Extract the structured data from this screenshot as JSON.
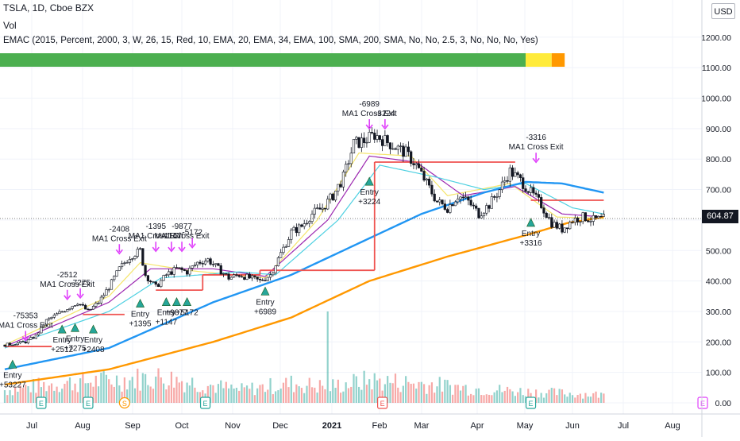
{
  "header": {
    "symbol_line": "TSLA, 1D, Cboe BZX",
    "volume_label": "Vol",
    "study_line": "EMAC (2015, Percent, 2000, 3, W, 26, 15, Red, 10, EMA, 20, EMA, 34, EMA, 100, SMA, 200, SMA, No, No, 2.5, 3, No, No, No, Yes)"
  },
  "currency_button": "USD",
  "last_price_label": "604.87",
  "chart_data": {
    "type": "candlestick",
    "title": "TSLA, 1D, Cboe BZX",
    "ylim": [
      0,
      1300
    ],
    "y_ticks": [
      0,
      100,
      200,
      300,
      400,
      500,
      600,
      700,
      800,
      900,
      1000,
      1100,
      1200
    ],
    "y_tick_labels": [
      "0.00",
      "100.00",
      "200.00",
      "300.00",
      "400.00",
      "500.00",
      "600.00",
      "700.00",
      "800.00",
      "900.00",
      "1000.00",
      "1100.00",
      "1200.00"
    ],
    "x_tick_labels": [
      "Jul",
      "Aug",
      "Sep",
      "Oct",
      "Nov",
      "Dec",
      "2021",
      "Feb",
      "Mar",
      "Apr",
      "May",
      "Jun",
      "Jul",
      "Aug"
    ],
    "last_price": 604.87,
    "price_path_anchors": [
      {
        "d": 0,
        "v": 190
      },
      {
        "d": 8,
        "v": 200
      },
      {
        "d": 12,
        "v": 220
      },
      {
        "d": 16,
        "v": 270
      },
      {
        "d": 20,
        "v": 290
      },
      {
        "d": 24,
        "v": 310
      },
      {
        "d": 28,
        "v": 330
      },
      {
        "d": 32,
        "v": 300
      },
      {
        "d": 36,
        "v": 330
      },
      {
        "d": 40,
        "v": 380
      },
      {
        "d": 44,
        "v": 440
      },
      {
        "d": 48,
        "v": 480
      },
      {
        "d": 52,
        "v": 500
      },
      {
        "d": 54,
        "v": 420
      },
      {
        "d": 58,
        "v": 380
      },
      {
        "d": 62,
        "v": 420
      },
      {
        "d": 66,
        "v": 440
      },
      {
        "d": 70,
        "v": 430
      },
      {
        "d": 74,
        "v": 460
      },
      {
        "d": 78,
        "v": 470
      },
      {
        "d": 82,
        "v": 440
      },
      {
        "d": 86,
        "v": 410
      },
      {
        "d": 90,
        "v": 420
      },
      {
        "d": 94,
        "v": 410
      },
      {
        "d": 98,
        "v": 400
      },
      {
        "d": 102,
        "v": 420
      },
      {
        "d": 106,
        "v": 490
      },
      {
        "d": 110,
        "v": 560
      },
      {
        "d": 114,
        "v": 580
      },
      {
        "d": 118,
        "v": 620
      },
      {
        "d": 122,
        "v": 640
      },
      {
        "d": 126,
        "v": 680
      },
      {
        "d": 130,
        "v": 740
      },
      {
        "d": 134,
        "v": 850
      },
      {
        "d": 138,
        "v": 860
      },
      {
        "d": 142,
        "v": 880
      },
      {
        "d": 146,
        "v": 860
      },
      {
        "d": 150,
        "v": 840
      },
      {
        "d": 154,
        "v": 820
      },
      {
        "d": 158,
        "v": 780
      },
      {
        "d": 162,
        "v": 720
      },
      {
        "d": 166,
        "v": 660
      },
      {
        "d": 170,
        "v": 640
      },
      {
        "d": 174,
        "v": 680
      },
      {
        "d": 178,
        "v": 660
      },
      {
        "d": 182,
        "v": 620
      },
      {
        "d": 186,
        "v": 650
      },
      {
        "d": 190,
        "v": 700
      },
      {
        "d": 194,
        "v": 760
      },
      {
        "d": 198,
        "v": 730
      },
      {
        "d": 202,
        "v": 690
      },
      {
        "d": 206,
        "v": 650
      },
      {
        "d": 210,
        "v": 590
      },
      {
        "d": 214,
        "v": 570
      },
      {
        "d": 218,
        "v": 600
      },
      {
        "d": 222,
        "v": 610
      },
      {
        "d": 226,
        "v": 600
      },
      {
        "d": 230,
        "v": 605
      }
    ],
    "moving_averages": [
      {
        "name": "EMA 10",
        "color": "#f5e56b",
        "anchors": [
          {
            "d": 0,
            "v": 190
          },
          {
            "d": 40,
            "v": 350
          },
          {
            "d": 52,
            "v": 460
          },
          {
            "d": 70,
            "v": 435
          },
          {
            "d": 100,
            "v": 410
          },
          {
            "d": 120,
            "v": 600
          },
          {
            "d": 136,
            "v": 820
          },
          {
            "d": 156,
            "v": 810
          },
          {
            "d": 170,
            "v": 680
          },
          {
            "d": 194,
            "v": 720
          },
          {
            "d": 212,
            "v": 610
          },
          {
            "d": 230,
            "v": 605
          }
        ]
      },
      {
        "name": "EMA 20",
        "color": "#9c27b0",
        "anchors": [
          {
            "d": 0,
            "v": 185
          },
          {
            "d": 40,
            "v": 330
          },
          {
            "d": 56,
            "v": 440
          },
          {
            "d": 80,
            "v": 440
          },
          {
            "d": 100,
            "v": 415
          },
          {
            "d": 124,
            "v": 600
          },
          {
            "d": 140,
            "v": 810
          },
          {
            "d": 158,
            "v": 790
          },
          {
            "d": 176,
            "v": 680
          },
          {
            "d": 196,
            "v": 710
          },
          {
            "d": 214,
            "v": 620
          },
          {
            "d": 230,
            "v": 610
          }
        ]
      },
      {
        "name": "EMA 34",
        "color": "#4dd0e1",
        "anchors": [
          {
            "d": 0,
            "v": 180
          },
          {
            "d": 40,
            "v": 300
          },
          {
            "d": 60,
            "v": 410
          },
          {
            "d": 90,
            "v": 430
          },
          {
            "d": 104,
            "v": 420
          },
          {
            "d": 128,
            "v": 600
          },
          {
            "d": 144,
            "v": 780
          },
          {
            "d": 166,
            "v": 740
          },
          {
            "d": 184,
            "v": 700
          },
          {
            "d": 200,
            "v": 720
          },
          {
            "d": 218,
            "v": 640
          },
          {
            "d": 230,
            "v": 620
          }
        ]
      },
      {
        "name": "SMA 100",
        "color": "#2196f3",
        "anchors": [
          {
            "d": 0,
            "v": 110
          },
          {
            "d": 40,
            "v": 180
          },
          {
            "d": 80,
            "v": 330
          },
          {
            "d": 110,
            "v": 420
          },
          {
            "d": 140,
            "v": 540
          },
          {
            "d": 160,
            "v": 620
          },
          {
            "d": 184,
            "v": 690
          },
          {
            "d": 200,
            "v": 725
          },
          {
            "d": 214,
            "v": 720
          },
          {
            "d": 230,
            "v": 690
          }
        ]
      },
      {
        "name": "SMA 200",
        "color": "#ff9800",
        "anchors": [
          {
            "d": 0,
            "v": 60
          },
          {
            "d": 40,
            "v": 110
          },
          {
            "d": 80,
            "v": 200
          },
          {
            "d": 110,
            "v": 280
          },
          {
            "d": 140,
            "v": 400
          },
          {
            "d": 170,
            "v": 480
          },
          {
            "d": 200,
            "v": 550
          },
          {
            "d": 216,
            "v": 590
          },
          {
            "d": 230,
            "v": 610
          }
        ]
      }
    ],
    "stop_levels": [
      {
        "from_day": 0,
        "to_day": 18,
        "value": 185
      },
      {
        "from_day": 30,
        "to_day": 46,
        "value": 290
      },
      {
        "from_day": 58,
        "to_day": 76,
        "value": 370
      },
      {
        "from_day": 76,
        "to_day": 98,
        "value": 420
      },
      {
        "from_day": 98,
        "to_day": 142,
        "value": 435
      },
      {
        "from_day": 142,
        "to_day": 196,
        "value": 790
      },
      {
        "from_day": 202,
        "to_day": 230,
        "value": 665
      }
    ],
    "volume_profile": [
      {
        "d": 0,
        "v": 40
      },
      {
        "d": 20,
        "v": 60
      },
      {
        "d": 40,
        "v": 70
      },
      {
        "d": 60,
        "v": 80
      },
      {
        "d": 90,
        "v": 40
      },
      {
        "d": 110,
        "v": 60
      },
      {
        "d": 124,
        "v": 50
      },
      {
        "d": 140,
        "v": 70
      },
      {
        "d": 160,
        "v": 60
      },
      {
        "d": 180,
        "v": 45
      },
      {
        "d": 200,
        "v": 35
      },
      {
        "d": 230,
        "v": 25
      }
    ],
    "volume_spike": {
      "d": 124,
      "v": 300
    },
    "strategy_bar": [
      {
        "from_day": 0,
        "to_day": 200,
        "color": "#4caf50"
      },
      {
        "from_day": 200,
        "to_day": 210,
        "color": "#ffeb3b"
      },
      {
        "from_day": 210,
        "to_day": 215,
        "color": "#ff9800"
      }
    ],
    "trade_markers": [
      {
        "type": "entry",
        "d": 3,
        "price": 140,
        "labels": [
          "Entry",
          "+53227"
        ]
      },
      {
        "type": "exit",
        "d": 8,
        "price": 215,
        "labels": [
          "-75353",
          "MA1 Cross Exit"
        ]
      },
      {
        "type": "entry",
        "d": 22,
        "price": 255,
        "labels": [
          "Entry",
          "+2512"
        ]
      },
      {
        "type": "exit",
        "d": 24,
        "price": 350,
        "labels": [
          "-2512",
          "MA1 Cross Exit"
        ]
      },
      {
        "type": "entry",
        "d": 27,
        "price": 260,
        "labels": [
          "Entry",
          "+7275"
        ]
      },
      {
        "type": "exit",
        "d": 29,
        "price": 355,
        "labels": [
          "-7275"
        ]
      },
      {
        "type": "entry",
        "d": 34,
        "price": 255,
        "labels": [
          "Entry",
          "+2408"
        ]
      },
      {
        "type": "exit",
        "d": 44,
        "price": 500,
        "labels": [
          "-2408",
          "MA1 Cross Exit"
        ]
      },
      {
        "type": "entry",
        "d": 52,
        "price": 340,
        "labels": [
          "Entry",
          "+1395"
        ]
      },
      {
        "type": "exit",
        "d": 58,
        "price": 508,
        "labels": [
          "-1395",
          "MA1 Cross Exit"
        ]
      },
      {
        "type": "entry",
        "d": 62,
        "price": 345,
        "labels": [
          "Entry",
          "+1147"
        ]
      },
      {
        "type": "exit",
        "d": 64,
        "price": 508,
        "labels": [
          "-1147"
        ]
      },
      {
        "type": "entry",
        "d": 66,
        "price": 345,
        "labels": [
          "+9877"
        ]
      },
      {
        "type": "exit",
        "d": 68,
        "price": 508,
        "labels": [
          "-9877",
          "MA1 Cross Exit"
        ]
      },
      {
        "type": "entry",
        "d": 70,
        "price": 345,
        "labels": [
          "+5172"
        ]
      },
      {
        "type": "exit",
        "d": 72,
        "price": 520,
        "labels": [
          "-5172"
        ]
      },
      {
        "type": "entry",
        "d": 100,
        "price": 380,
        "labels": [
          "Entry",
          "+6989"
        ]
      },
      {
        "type": "exit",
        "d": 140,
        "price": 910,
        "labels": [
          "-6989",
          "MA1 Cross Exit"
        ]
      },
      {
        "type": "entry",
        "d": 140,
        "price": 740,
        "labels": [
          "Entry",
          "+3224"
        ]
      },
      {
        "type": "exit",
        "d": 146,
        "price": 910,
        "labels": [
          "-3224"
        ]
      },
      {
        "type": "entry",
        "d": 202,
        "price": 605,
        "labels": [
          "Entry",
          "+3316"
        ]
      },
      {
        "type": "exit",
        "d": 204,
        "price": 800,
        "labels": [
          "-3316",
          "MA1 Cross Exit"
        ]
      }
    ],
    "event_markers": [
      {
        "label": "E",
        "d": 14,
        "color": "#26a69a"
      },
      {
        "label": "E",
        "d": 32,
        "color": "#26a69a"
      },
      {
        "label": "S",
        "d": 46,
        "color": "#ff9800"
      },
      {
        "label": "E",
        "d": 77,
        "color": "#26a69a"
      },
      {
        "label": "E",
        "d": 145,
        "color": "#ef5350"
      },
      {
        "label": "E",
        "d": 202,
        "color": "#26a69a"
      },
      {
        "label": "E",
        "d": 268,
        "color": "#e040fb"
      }
    ]
  }
}
